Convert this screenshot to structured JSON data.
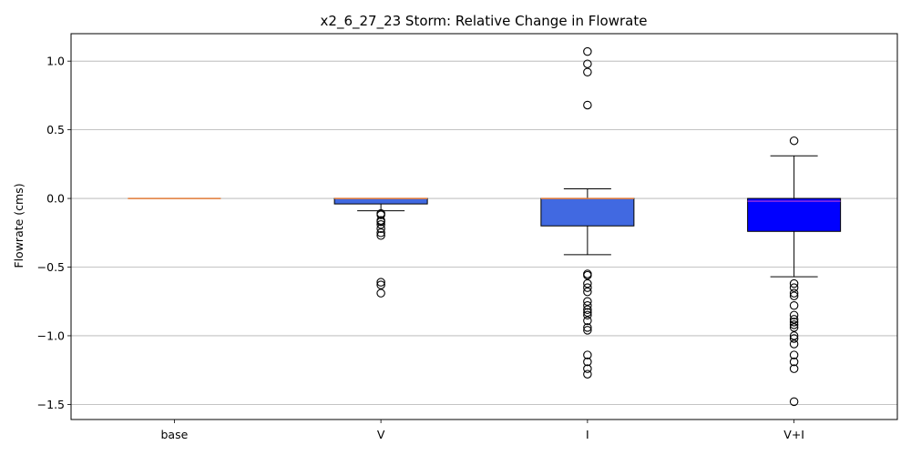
{
  "chart_data": {
    "type": "box",
    "title": "x2_6_27_23 Storm: Relative Change in Flowrate",
    "xlabel": "",
    "ylabel": "Flowrate (cms)",
    "ylim": [
      -1.61,
      1.2
    ],
    "yticks": [
      1.0,
      0.5,
      0.0,
      -0.5,
      -1.0,
      -1.5
    ],
    "ytick_labels": [
      "1.0",
      "0.5",
      "0.0",
      "−0.5",
      "−1.0",
      "−1.5"
    ],
    "grid": "horizontal",
    "categories": [
      "base",
      "V",
      "I",
      "V+I"
    ],
    "boxes": [
      {
        "name": "base",
        "q1": 0.0,
        "median": 0.0,
        "q3": 0.0,
        "whisker_low": 0.0,
        "whisker_high": 0.0,
        "fill": "#f4a261",
        "median_color": "#e07b39",
        "outliers": []
      },
      {
        "name": "V",
        "q1": -0.04,
        "median": 0.0,
        "q3": 0.0,
        "whisker_low": -0.09,
        "whisker_high": 0.0,
        "fill": "#4169e1",
        "median_color": "#e07b39",
        "outliers": [
          -0.11,
          -0.12,
          -0.16,
          -0.17,
          -0.19,
          -0.22,
          -0.25,
          -0.27,
          -0.61,
          -0.63,
          -0.69
        ]
      },
      {
        "name": "I",
        "q1": -0.2,
        "median": 0.0,
        "q3": 0.0,
        "whisker_low": -0.41,
        "whisker_high": 0.07,
        "fill": "#4169e1",
        "median_color": "#e07b39",
        "outliers": [
          1.07,
          0.98,
          0.92,
          0.68,
          -0.55,
          -0.56,
          -0.62,
          -0.65,
          -0.68,
          -0.75,
          -0.78,
          -0.81,
          -0.83,
          -0.85,
          -0.89,
          -0.94,
          -0.96,
          -1.14,
          -1.19,
          -1.24,
          -1.28
        ]
      },
      {
        "name": "V+I",
        "q1": -0.24,
        "median": -0.02,
        "q3": 0.0,
        "whisker_low": -0.57,
        "whisker_high": 0.31,
        "fill": "#0000ff",
        "median_color": "#8a2be2",
        "outliers": [
          0.42,
          -0.62,
          -0.65,
          -0.69,
          -0.71,
          -0.78,
          -0.85,
          -0.88,
          -0.9,
          -0.92,
          -0.94,
          -1.0,
          -1.02,
          -1.06,
          -1.14,
          -1.19,
          -1.24,
          -1.48
        ]
      }
    ]
  }
}
